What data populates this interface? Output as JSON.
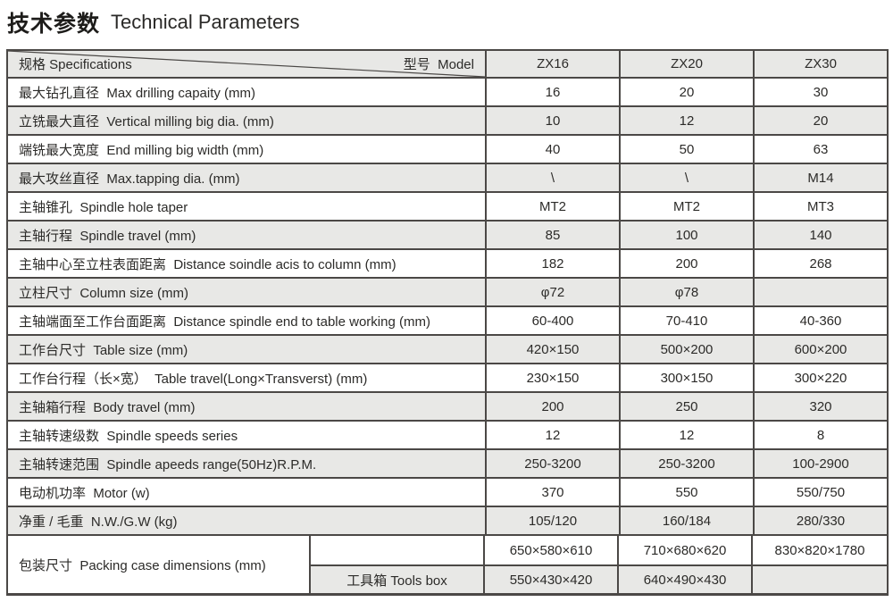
{
  "page": {
    "title_zh": "技术参数",
    "title_en": "Technical Parameters"
  },
  "colors": {
    "row_shade": "#e8e8e6",
    "border": "#4b4846",
    "text": "#2c2b29"
  },
  "table": {
    "header": {
      "spec_label": "规格 Specifications",
      "model_label": "型号  Model",
      "models": [
        "ZX16",
        "ZX20",
        "ZX30"
      ]
    },
    "rows": [
      {
        "label": "最大钻孔直径  Max drilling capaity (mm)",
        "values": [
          "16",
          "20",
          "30"
        ]
      },
      {
        "label": "立铣最大直径  Vertical milling big dia. (mm)",
        "values": [
          "10",
          "12",
          "20"
        ]
      },
      {
        "label": "端铣最大宽度  End milling big width (mm)",
        "values": [
          "40",
          "50",
          "63"
        ]
      },
      {
        "label": "最大攻丝直径  Max.tapping dia. (mm)",
        "values": [
          "\\",
          "\\",
          "M14"
        ]
      },
      {
        "label": "主轴锥孔  Spindle hole taper",
        "values": [
          "MT2",
          "MT2",
          "MT3"
        ]
      },
      {
        "label": "主轴行程  Spindle travel (mm)",
        "values": [
          "85",
          "100",
          "140"
        ]
      },
      {
        "label": "主轴中心至立柱表面距离  Distance soindle acis to column (mm)",
        "values": [
          "182",
          "200",
          "268"
        ]
      },
      {
        "label": "立柱尺寸  Column size (mm)",
        "values": [
          "φ72",
          "φ78",
          ""
        ]
      },
      {
        "label": "主轴端面至工作台面距离  Distance spindle end to table working (mm)",
        "values": [
          "60-400",
          "70-410",
          "40-360"
        ]
      },
      {
        "label": "工作台尺寸  Table size (mm)",
        "values": [
          "420×150",
          "500×200",
          "600×200"
        ]
      },
      {
        "label": "工作台行程（长×宽）  Table travel(Long×Transverst) (mm)",
        "values": [
          "230×150",
          "300×150",
          "300×220"
        ]
      },
      {
        "label": "主轴箱行程  Body travel (mm)",
        "values": [
          "200",
          "250",
          "320"
        ]
      },
      {
        "label": "主轴转速级数  Spindle speeds series",
        "values": [
          "12",
          "12",
          "8"
        ]
      },
      {
        "label": "主轴转速范围  Spindle apeeds range(50Hz)R.P.M.",
        "values": [
          "250-3200",
          "250-3200",
          "100-2900"
        ]
      },
      {
        "label": "电动机功率  Motor (w)",
        "values": [
          "370",
          "550",
          "550/750"
        ]
      },
      {
        "label": "净重 / 毛重  N.W./G.W (kg)",
        "values": [
          "105/120",
          "160/184",
          "280/330"
        ]
      }
    ],
    "packing": {
      "label": "包装尺寸  Packing case dimensions (mm)",
      "sub_rows": [
        {
          "sub_label": "",
          "values": [
            "650×580×610",
            "710×680×620",
            "830×820×1780"
          ]
        },
        {
          "sub_label": "工具箱 Tools box",
          "values": [
            "550×430×420",
            "640×490×430",
            ""
          ]
        }
      ]
    }
  }
}
